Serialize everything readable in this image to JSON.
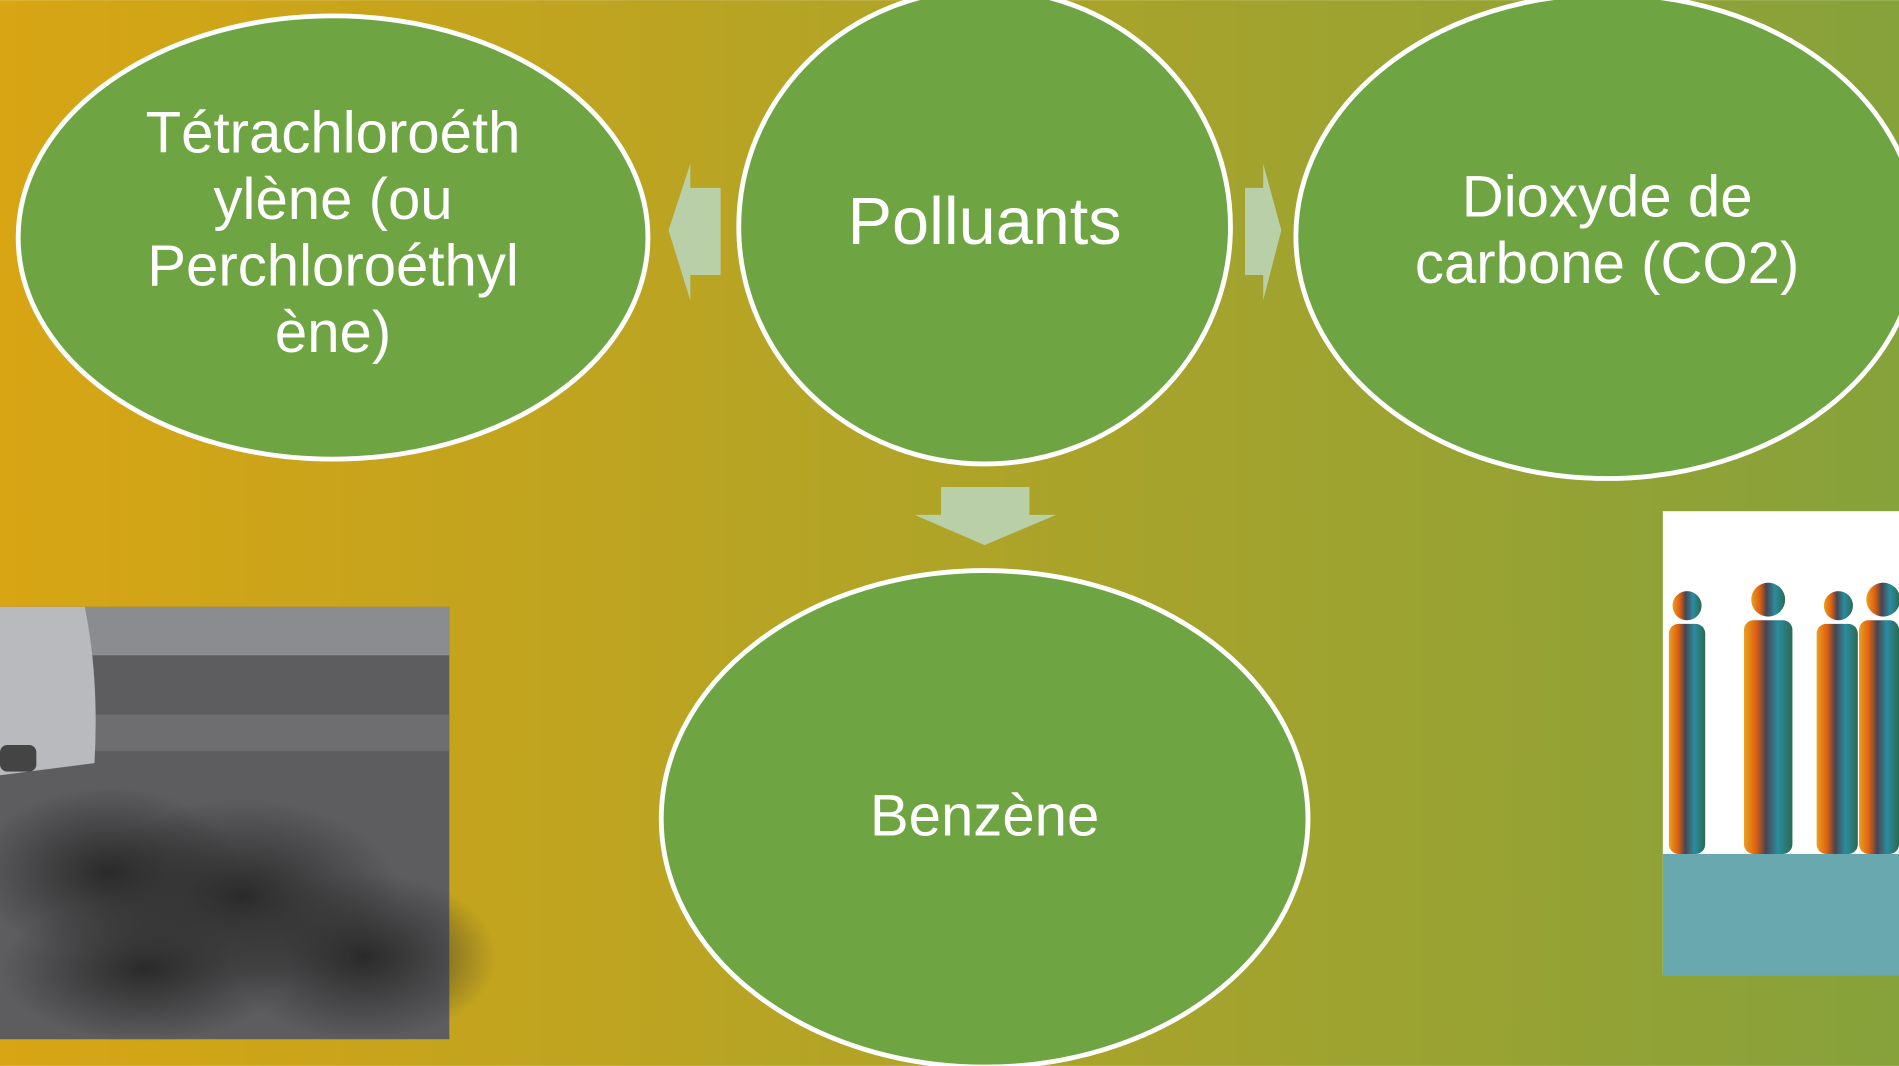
{
  "nodes": [
    {
      "lines": [
        "Tétrachloroéth",
        "ylène (ou",
        "Perchloroéthyl",
        "ène)"
      ]
    },
    {
      "lines": [
        "Polluants"
      ]
    },
    {
      "lines": [
        "Dioxyde de",
        "carbone (CO2)"
      ]
    },
    {
      "lines": [
        "Benzène"
      ]
    }
  ]
}
